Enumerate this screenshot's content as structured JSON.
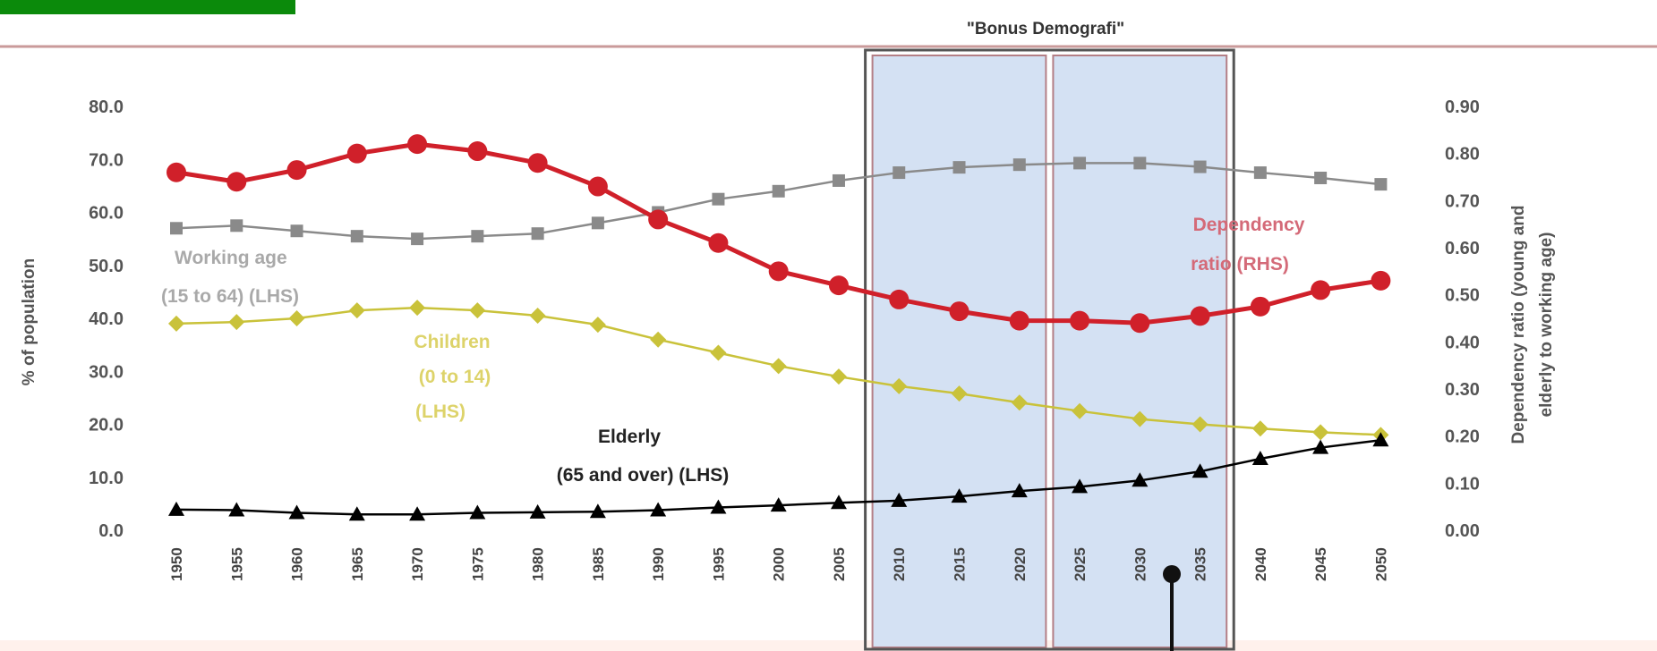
{
  "chart_data": {
    "type": "line",
    "title": "\"Bonus Demografi\"",
    "x": [
      1950,
      1955,
      1960,
      1965,
      1970,
      1975,
      1980,
      1985,
      1990,
      1995,
      2000,
      2005,
      2010,
      2015,
      2020,
      2025,
      2030,
      2035,
      2040,
      2045,
      2050
    ],
    "x_tick_labels": [
      "1950",
      "1955",
      "1960",
      "1965",
      "1970",
      "1975",
      "1980",
      "1985",
      "1990",
      "1995",
      "2000",
      "2005",
      "2010",
      "2015",
      "2020",
      "2025",
      "2030",
      "2035",
      "2040",
      "2045",
      "2050"
    ],
    "ylabel_left": "% of population",
    "ylabel_right_line1": "Dependency ratio (young and",
    "ylabel_right_line2": "elderly to working age)",
    "ylim_left": [
      0,
      80
    ],
    "ylim_right": [
      0,
      0.9
    ],
    "y_left_ticks": [
      "80.0",
      "70.0",
      "60.0",
      "50.0",
      "40.0",
      "30.0",
      "20.0",
      "10.0",
      "0.0"
    ],
    "y_right_ticks": [
      "0.90",
      "0.80",
      "0.70",
      "0.60",
      "0.50",
      "0.40",
      "0.30",
      "0.20",
      "0.10",
      "0.00"
    ],
    "grid": false,
    "series": [
      {
        "key": "working",
        "axis": "left",
        "marker": "square",
        "color": "#8a8a8a",
        "values": [
          57.0,
          57.5,
          56.5,
          55.5,
          55.0,
          55.5,
          56.0,
          58.0,
          60.0,
          62.5,
          64.0,
          66.0,
          67.5,
          68.5,
          69.0,
          69.3,
          69.3,
          68.6,
          67.5,
          66.5,
          65.3
        ]
      },
      {
        "key": "children",
        "axis": "left",
        "marker": "diamond",
        "color": "#c9c23a",
        "values": [
          39.0,
          39.3,
          40.0,
          41.5,
          42.0,
          41.5,
          40.5,
          38.8,
          36.0,
          33.5,
          31.0,
          29.0,
          27.2,
          25.8,
          24.1,
          22.5,
          21.0,
          20.0,
          19.2,
          18.5,
          18.0
        ]
      },
      {
        "key": "elderly",
        "axis": "left",
        "marker": "triangle",
        "color": "#000000",
        "values": [
          3.9,
          3.8,
          3.3,
          3.0,
          3.0,
          3.3,
          3.4,
          3.5,
          3.8,
          4.3,
          4.7,
          5.2,
          5.6,
          6.4,
          7.4,
          8.2,
          9.4,
          11.1,
          13.5,
          15.6,
          17.0
        ]
      },
      {
        "key": "dependency",
        "axis": "right",
        "marker": "circle",
        "color": "#d0202a",
        "values": [
          0.76,
          0.74,
          0.765,
          0.8,
          0.82,
          0.805,
          0.78,
          0.73,
          0.66,
          0.61,
          0.55,
          0.52,
          0.49,
          0.465,
          0.445,
          0.445,
          0.44,
          0.455,
          0.475,
          0.51,
          0.53
        ]
      }
    ],
    "annotations": {
      "working_line1": "Working age",
      "working_line2": "(15 to 64) (LHS)",
      "children_line1": "Children",
      "children_line2": "(0 to 14)",
      "children_line3": "(LHS)",
      "elderly_line1": "Elderly",
      "elderly_line2": "(65 and over) (LHS)",
      "dependency_line1": "Dependency",
      "dependency_line2": "ratio (RHS)"
    },
    "highlight_color": "#d4e1f3",
    "highlight_ranges": [
      [
        2010,
        2020
      ],
      [
        2025,
        2035
      ]
    ],
    "bonus_range": [
      2010,
      2035
    ]
  },
  "colors": {
    "top_bar": "#0b8a0b",
    "rule": "#c99a9a",
    "pointer": "#111111"
  }
}
